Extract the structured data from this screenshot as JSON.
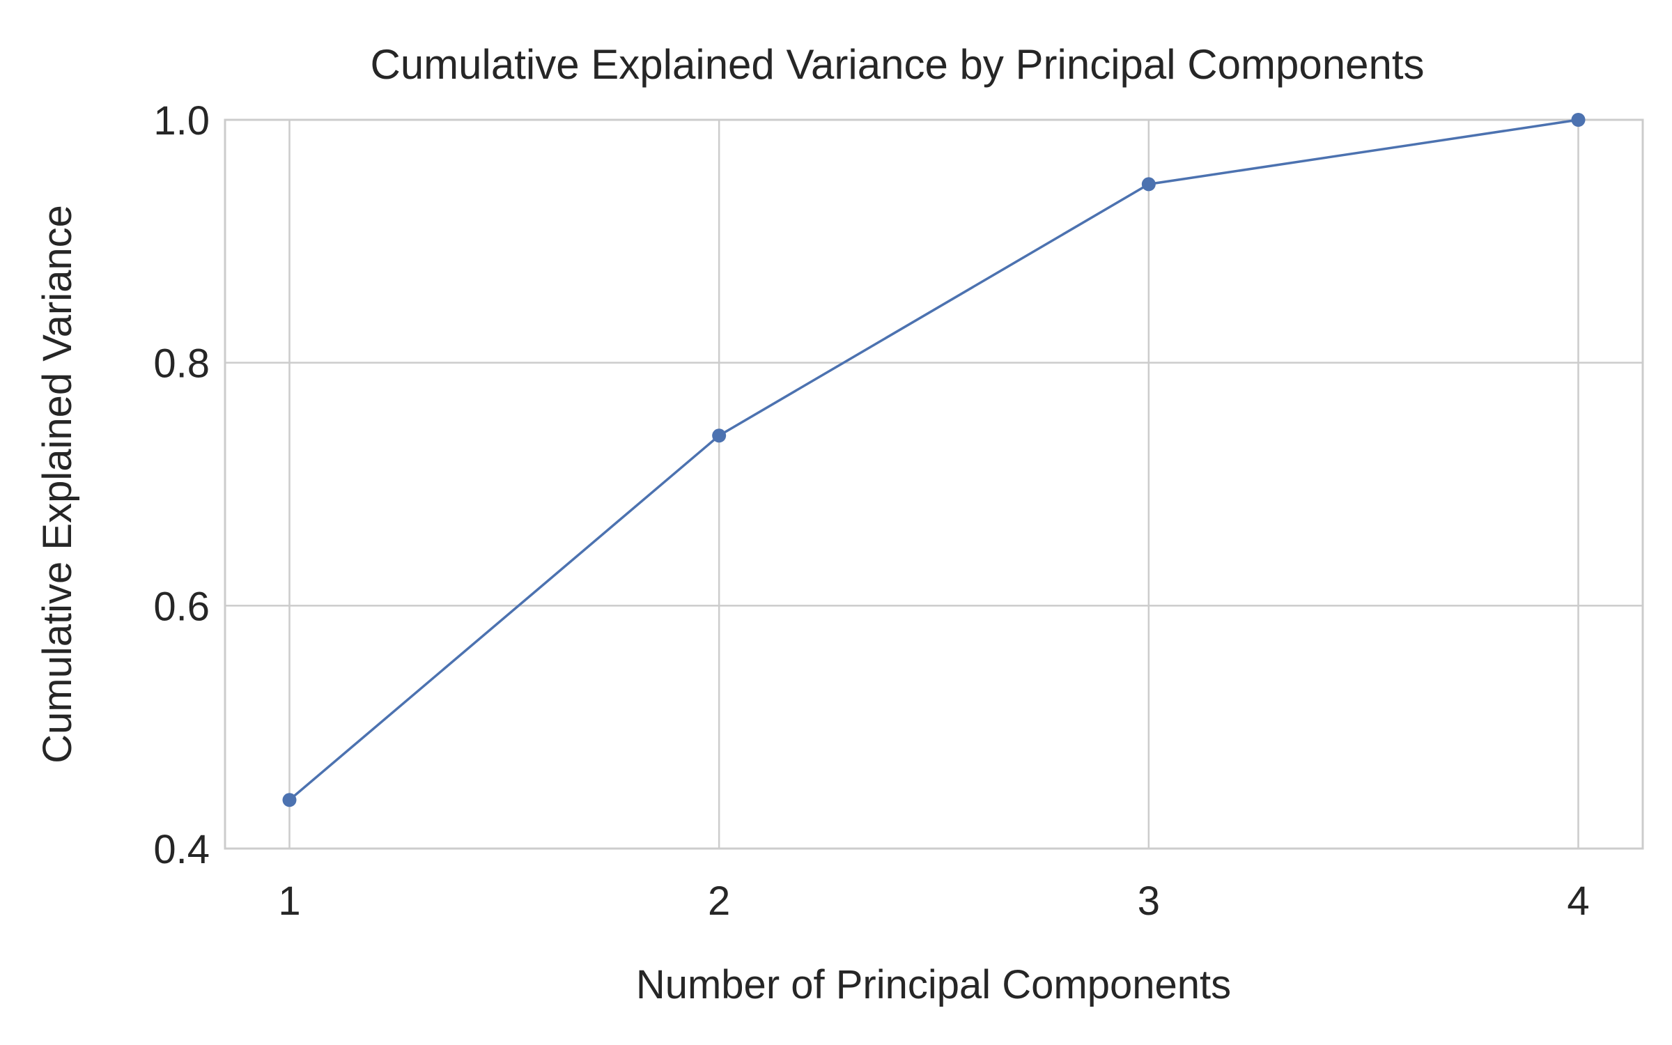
{
  "chart_data": {
    "type": "line",
    "title": "Cumulative Explained Variance by Principal Components",
    "xlabel": "Number of Principal Components",
    "ylabel": "Cumulative Explained Variance",
    "x": [
      1,
      2,
      3,
      4
    ],
    "series": [
      {
        "values": [
          0.44,
          0.74,
          0.947,
          1.0
        ],
        "color": "#4c72b0"
      }
    ],
    "xticks": [
      "1",
      "2",
      "3",
      "4"
    ],
    "yticks": [
      "0.4",
      "0.6",
      "0.8",
      "1.0"
    ],
    "xlim": [
      0.85,
      4.15
    ],
    "ylim": [
      0.4,
      1.0
    ],
    "grid": true,
    "marker": "circle"
  }
}
